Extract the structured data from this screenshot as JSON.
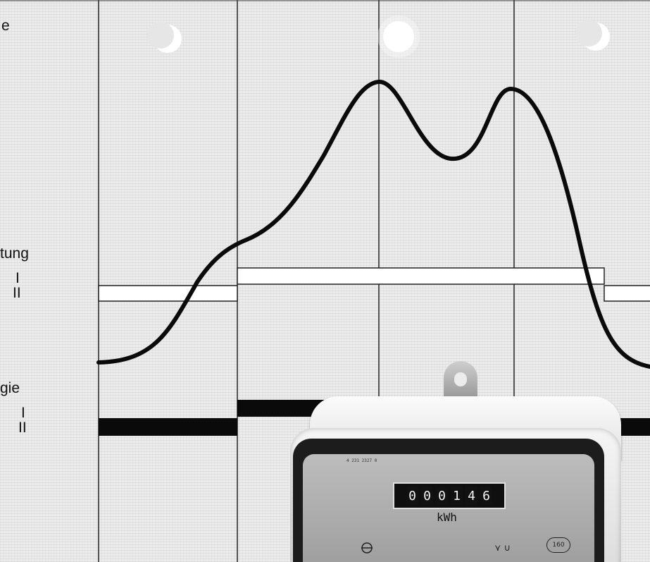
{
  "labels": {
    "top": "e",
    "leistung": "tung",
    "leistung_tariff_1": "I",
    "leistung_tariff_2": "II",
    "energie": "gie",
    "energie_tariff_1": "I",
    "energie_tariff_2": "II"
  },
  "icons": {
    "moon_left": "moon-icon",
    "sun": "sun-icon",
    "moon_right": "moon-icon"
  },
  "meter": {
    "serial": "4 231 2327 0",
    "digits": [
      "0",
      "0",
      "0",
      "1",
      "4",
      "6"
    ],
    "unit": "kWh",
    "symbols": "⋎  ∪",
    "badge": "160"
  },
  "colors": {
    "curve": "#000000",
    "band": "#000000",
    "paper": "#ececec"
  }
}
